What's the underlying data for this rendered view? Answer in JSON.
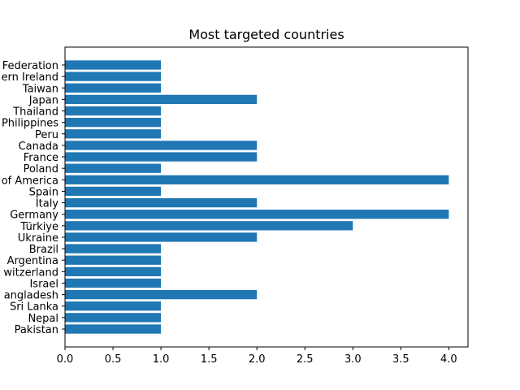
{
  "chart_data": {
    "type": "bar",
    "orientation": "horizontal",
    "title": "Most targeted countries",
    "xlabel": "",
    "ylabel": "",
    "categories": [
      "Pakistan",
      "Nepal",
      "Sri Lanka",
      "angladesh",
      "Israel",
      "witzerland",
      "Argentina",
      "Brazil",
      "Ukraine",
      "Türkiye",
      "Germany",
      "Italy",
      "Spain",
      "of America",
      "Poland",
      "France",
      "Canada",
      "Peru",
      "Philippines",
      "Thailand",
      "Japan",
      "Taiwan",
      "ern Ireland",
      "Federation"
    ],
    "values": [
      1,
      1,
      1,
      2,
      1,
      1,
      1,
      1,
      2,
      3,
      4,
      2,
      1,
      4,
      1,
      2,
      2,
      1,
      1,
      1,
      2,
      1,
      1,
      1
    ],
    "xlim": [
      0,
      4.2
    ],
    "xticks": [
      "0.0",
      "0.5",
      "1.0",
      "1.5",
      "2.0",
      "2.5",
      "3.0",
      "3.5",
      "4.0"
    ],
    "bar_color": "#1f77b4",
    "grid": false
  }
}
